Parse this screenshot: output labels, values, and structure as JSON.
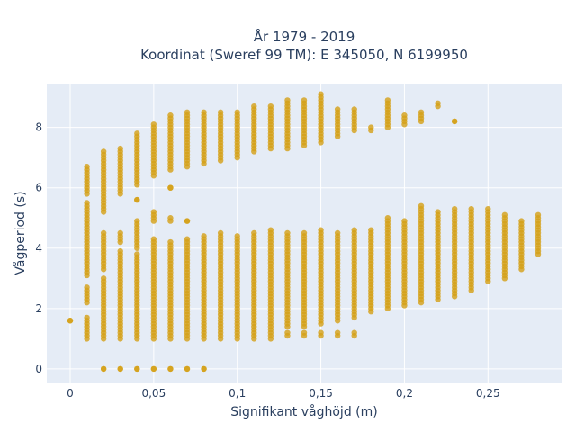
{
  "chart_data": {
    "type": "scatter",
    "title_lines": [
      "År 1979 - 2019",
      "Koordinat (Sweref 99 TM): E 345050, N 6199950"
    ],
    "xlabel": "Signifikant våghöjd (m)",
    "ylabel": "Vågperiod (s)",
    "xlim": [
      -0.014,
      0.294
    ],
    "ylim": [
      -0.45,
      9.45
    ],
    "x_ticks": [
      0,
      0.05,
      0.1,
      0.15,
      0.2,
      0.25
    ],
    "x_tick_labels": [
      "0",
      "0,05",
      "0,1",
      "0,15",
      "0,2",
      "0,25"
    ],
    "y_ticks": [
      0,
      2,
      4,
      6,
      8
    ],
    "y_tick_labels": [
      "0",
      "2",
      "4",
      "6",
      "8"
    ],
    "grid": true,
    "background_color": "#e5ecf6",
    "marker_color": "#d4a017",
    "point_groups": [
      {
        "x": 0.0,
        "segments": [
          [
            1.6,
            1.6
          ]
        ]
      },
      {
        "x": 0.01,
        "segments": [
          [
            1.0,
            1.7
          ],
          [
            2.2,
            2.7
          ],
          [
            3.1,
            5.5
          ],
          [
            5.8,
            6.7
          ]
        ]
      },
      {
        "x": 0.02,
        "segments": [
          [
            0.0,
            0.0
          ],
          [
            1.0,
            3.0
          ],
          [
            3.3,
            4.5
          ],
          [
            5.2,
            7.2
          ]
        ]
      },
      {
        "x": 0.03,
        "segments": [
          [
            0.0,
            0.0
          ],
          [
            1.0,
            3.9
          ],
          [
            4.2,
            4.5
          ],
          [
            5.8,
            7.3
          ]
        ]
      },
      {
        "x": 0.04,
        "segments": [
          [
            0.0,
            0.0
          ],
          [
            1.0,
            3.8
          ],
          [
            4.0,
            4.9
          ],
          [
            5.6,
            5.6
          ],
          [
            6.1,
            7.8
          ]
        ]
      },
      {
        "x": 0.05,
        "segments": [
          [
            0.0,
            0.0
          ],
          [
            1.0,
            4.3
          ],
          [
            4.9,
            5.2
          ],
          [
            6.4,
            8.1
          ]
        ]
      },
      {
        "x": 0.06,
        "segments": [
          [
            0.0,
            0.0
          ],
          [
            1.0,
            4.2
          ],
          [
            4.9,
            5.0
          ],
          [
            6.0,
            6.0
          ],
          [
            6.6,
            8.4
          ]
        ]
      },
      {
        "x": 0.07,
        "segments": [
          [
            0.0,
            0.0
          ],
          [
            1.0,
            4.3
          ],
          [
            4.9,
            4.9
          ],
          [
            6.7,
            8.5
          ]
        ]
      },
      {
        "x": 0.08,
        "segments": [
          [
            0.0,
            0.0
          ],
          [
            1.0,
            4.4
          ],
          [
            6.8,
            8.5
          ]
        ]
      },
      {
        "x": 0.09,
        "segments": [
          [
            1.0,
            4.5
          ],
          [
            6.9,
            8.5
          ]
        ]
      },
      {
        "x": 0.1,
        "segments": [
          [
            1.0,
            4.4
          ],
          [
            7.0,
            8.5
          ]
        ]
      },
      {
        "x": 0.11,
        "segments": [
          [
            1.0,
            4.5
          ],
          [
            7.2,
            8.7
          ]
        ]
      },
      {
        "x": 0.12,
        "segments": [
          [
            1.0,
            4.6
          ],
          [
            7.3,
            8.7
          ]
        ]
      },
      {
        "x": 0.13,
        "segments": [
          [
            1.1,
            1.2
          ],
          [
            1.4,
            4.5
          ],
          [
            7.3,
            8.9
          ]
        ]
      },
      {
        "x": 0.14,
        "segments": [
          [
            1.1,
            1.2
          ],
          [
            1.4,
            4.5
          ],
          [
            7.4,
            8.9
          ]
        ]
      },
      {
        "x": 0.15,
        "segments": [
          [
            1.1,
            1.2
          ],
          [
            1.5,
            4.6
          ],
          [
            7.5,
            9.1
          ]
        ]
      },
      {
        "x": 0.16,
        "segments": [
          [
            1.1,
            1.2
          ],
          [
            1.6,
            4.5
          ],
          [
            7.7,
            8.6
          ]
        ]
      },
      {
        "x": 0.17,
        "segments": [
          [
            1.1,
            1.2
          ],
          [
            1.7,
            4.6
          ],
          [
            7.9,
            8.6
          ]
        ]
      },
      {
        "x": 0.18,
        "segments": [
          [
            1.9,
            4.6
          ],
          [
            7.9,
            8.0
          ]
        ]
      },
      {
        "x": 0.19,
        "segments": [
          [
            2.0,
            5.0
          ],
          [
            8.0,
            8.9
          ]
        ]
      },
      {
        "x": 0.2,
        "segments": [
          [
            2.1,
            4.9
          ],
          [
            8.1,
            8.4
          ]
        ]
      },
      {
        "x": 0.21,
        "segments": [
          [
            2.2,
            5.4
          ],
          [
            8.2,
            8.5
          ]
        ]
      },
      {
        "x": 0.22,
        "segments": [
          [
            2.3,
            5.2
          ],
          [
            8.7,
            8.8
          ]
        ]
      },
      {
        "x": 0.23,
        "segments": [
          [
            2.4,
            5.3
          ],
          [
            8.2,
            8.2
          ]
        ]
      },
      {
        "x": 0.24,
        "segments": [
          [
            2.6,
            5.3
          ]
        ]
      },
      {
        "x": 0.25,
        "segments": [
          [
            2.9,
            5.3
          ]
        ]
      },
      {
        "x": 0.26,
        "segments": [
          [
            3.0,
            5.1
          ]
        ]
      },
      {
        "x": 0.27,
        "segments": [
          [
            3.3,
            4.9
          ]
        ]
      },
      {
        "x": 0.28,
        "segments": [
          [
            3.8,
            5.1
          ]
        ]
      }
    ]
  }
}
